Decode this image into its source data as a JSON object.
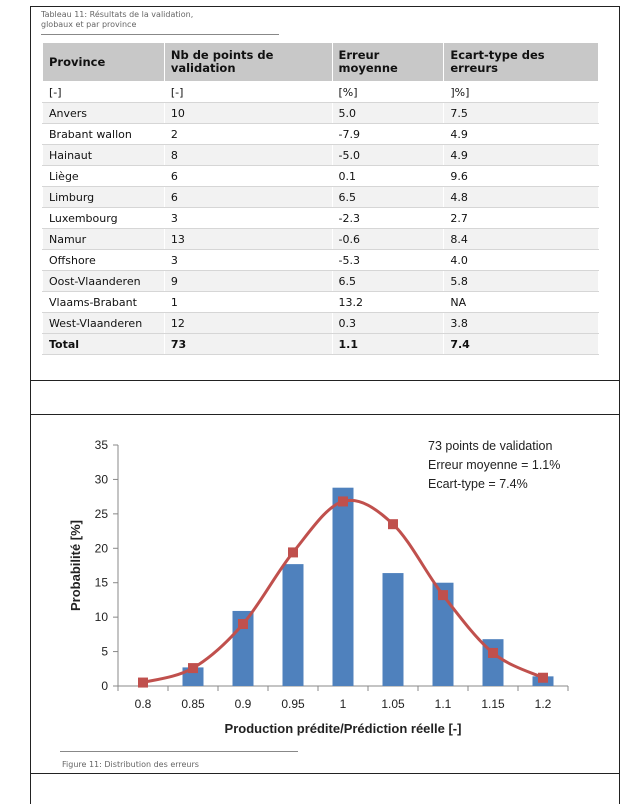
{
  "table": {
    "caption": "Tableau 11: Résultats de la validation, globaux et par province",
    "caption_line1": "Tableau 11: Résultats de la validation,",
    "caption_line2": "globaux et par province",
    "headers": [
      "Province",
      "Nb de points de validation",
      "Erreur moyenne",
      "Ecart-type des erreurs"
    ],
    "units": [
      "[-]",
      "[-]",
      "[%]",
      "]%]"
    ],
    "rows": [
      [
        "Anvers",
        "10",
        "5.0",
        "7.5"
      ],
      [
        "Brabant wallon",
        "2",
        "-7.9",
        "4.9"
      ],
      [
        "Hainaut",
        "8",
        "-5.0",
        "4.9"
      ],
      [
        "Liège",
        "6",
        "0.1",
        "9.6"
      ],
      [
        "Limburg",
        "6",
        "6.5",
        "4.8"
      ],
      [
        "Luxembourg",
        "3",
        "-2.3",
        "2.7"
      ],
      [
        "Namur",
        "13",
        "-0.6",
        "8.4"
      ],
      [
        "Offshore",
        "3",
        "-5.3",
        "4.0"
      ],
      [
        "Oost-Vlaanderen",
        "9",
        "6.5",
        "5.8"
      ],
      [
        "Vlaams-Brabant",
        "1",
        "13.2",
        "NA"
      ],
      [
        "West-Vlaanderen",
        "12",
        "0.3",
        "3.8"
      ]
    ],
    "total": [
      "Total",
      "73",
      "1.1",
      "7.4"
    ]
  },
  "chart_data": {
    "type": "bar",
    "categories": [
      "0.8",
      "0.85",
      "0.9",
      "0.95",
      "1",
      "1.05",
      "1.1",
      "1.15",
      "1.2"
    ],
    "series": [
      {
        "type": "bar",
        "color": "#4f81bd",
        "values": [
          0,
          2.7,
          10.9,
          17.7,
          28.8,
          16.4,
          15.0,
          6.8,
          1.4
        ]
      },
      {
        "type": "line",
        "color": "#c0504d",
        "marker": "square",
        "values": [
          0.5,
          2.6,
          9.0,
          19.4,
          26.8,
          23.5,
          13.2,
          4.8,
          1.2
        ]
      }
    ],
    "xlabel": "Production prédite/Prédiction réelle [-]",
    "ylabel": "Probabilité [%]",
    "ylim": [
      0,
      35
    ],
    "yticks": [
      0,
      5,
      10,
      15,
      20,
      25,
      30,
      35
    ],
    "annotation": [
      "73 points de validation",
      "Erreur moyenne = 1.1%",
      "Ecart-type = 7.4%"
    ],
    "grid": false,
    "legend": "none"
  },
  "figure_caption": "Figure 11: Distribution des erreurs",
  "colors": {
    "header_bg": "#c8c8c8",
    "stripe": "#f2f2f2",
    "bar": "#4f81bd",
    "line": "#c0504d"
  }
}
